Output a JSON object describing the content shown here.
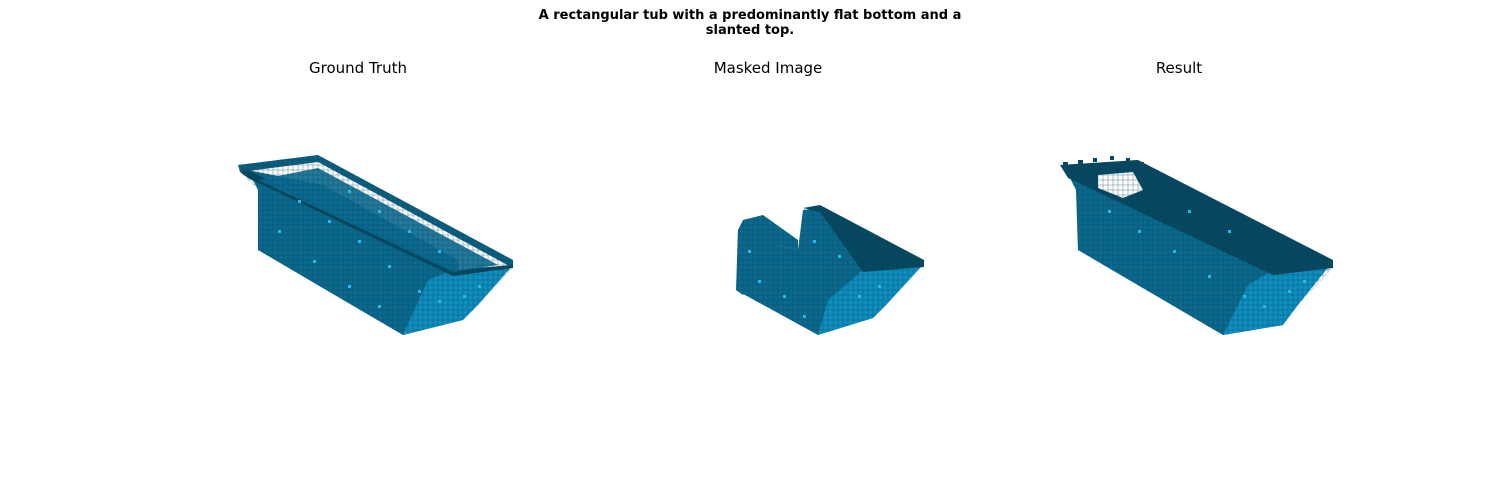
{
  "figure": {
    "suptitle_lines": [
      "A rectangular tub with a predominantly flat bottom and a",
      "slanted top."
    ],
    "panels": [
      {
        "title": "Ground Truth"
      },
      {
        "title": "Masked Image"
      },
      {
        "title": "Result"
      }
    ]
  },
  "colors": {
    "background": "#ffffff",
    "voxel_face_dark": "#0a6a8e",
    "voxel_face_light": "#0f8fc0",
    "voxel_edge": "#06485f",
    "voxel_top": "#0b5f80"
  }
}
